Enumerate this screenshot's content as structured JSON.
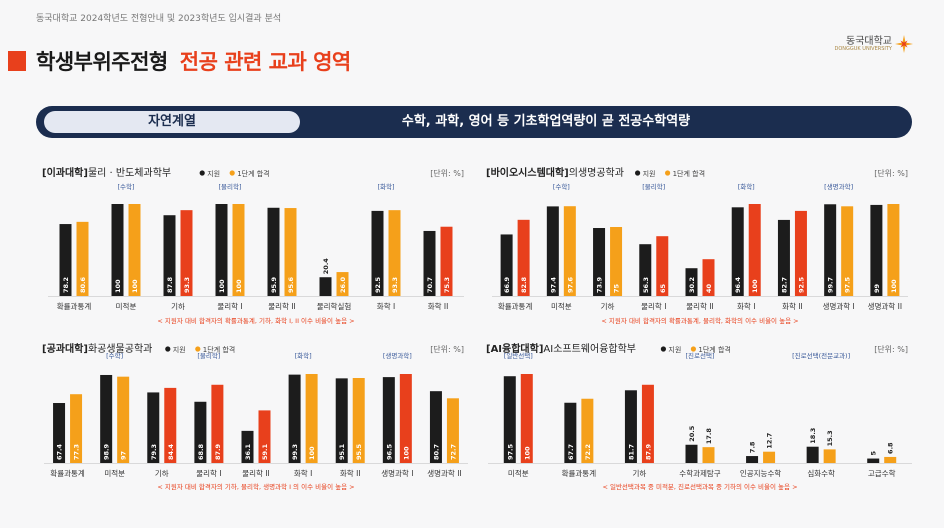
{
  "header": {
    "top_caption": "동국대학교 2024학년도 전형안내 및 2023학년도 입시결과 분석",
    "title": "학생부위주전형",
    "subtitle": "전공 관련 교과 영역",
    "logo_text": "동국대학교",
    "logo_sub": "DONGGUK UNIVERSITY"
  },
  "banner": {
    "category": "자연계열",
    "message": "수학, 과학, 영어 등 기초학업역량이 곧 전공수학역량"
  },
  "colors": {
    "black": "#1c1c1c",
    "orange": "#f5a01a",
    "red": "#e8401c",
    "navy": "#1b2d4f"
  },
  "chart_data": [
    {
      "type": "bar",
      "title_bracket": "[이과대학]",
      "title_rest": "물리 · 반도체과학부",
      "unit": "[단위: %]",
      "legend": [
        "지원",
        "1단계 합격"
      ],
      "categories": [
        "확률과통계",
        "미적분",
        "기하",
        "물리학 I",
        "물리학 II",
        "물리학실험",
        "화학 I",
        "화학 II"
      ],
      "tags": [
        "",
        "[수학]",
        "",
        "[물리학]",
        "",
        "",
        "[화학]",
        ""
      ],
      "series": [
        {
          "name": "지원",
          "values": [
            78.2,
            100,
            87.8,
            100,
            95.9,
            20.4,
            92.5,
            70.7
          ],
          "labels": [
            "78.2",
            "100",
            "87.8",
            "100",
            "95.9",
            "20.4",
            "92.5",
            "70.7"
          ]
        },
        {
          "name": "1단계 합격",
          "values": [
            80.6,
            100,
            93.3,
            100,
            95.6,
            26.0,
            93.3,
            75.3
          ],
          "labels": [
            "80.6",
            "100",
            "93.3",
            "100",
            "95.6",
            "26.0",
            "93.3",
            "75.3"
          ],
          "highlight": [
            false,
            false,
            true,
            false,
            false,
            false,
            false,
            true
          ]
        }
      ],
      "note": "< 지원자 대비 합격자의 확률과통계, 기하, 화학 I, II 이수 비율이 높음 >",
      "ylim": [
        0,
        100
      ]
    },
    {
      "type": "bar",
      "title_bracket": "[바이오시스템대학]",
      "title_rest": "의생명공학과",
      "unit": "[단위: %]",
      "legend": [
        "지원",
        "1단계 합격"
      ],
      "categories": [
        "확률과통계",
        "미적분",
        "기하",
        "물리학 I",
        "물리학 II",
        "화학 I",
        "화학 II",
        "생명과학 I",
        "생명과학 II"
      ],
      "tags": [
        "",
        "[수학]",
        "",
        "[물리학]",
        "",
        "[화학]",
        "",
        "[생명과학]",
        ""
      ],
      "series": [
        {
          "name": "지원",
          "values": [
            66.9,
            97.4,
            73.9,
            56.3,
            30.2,
            96.4,
            82.7,
            99.7,
            99
          ],
          "labels": [
            "66.9",
            "97.4",
            "73.9",
            "56.3",
            "30.2",
            "96.4",
            "82.7",
            "99.7",
            "99"
          ]
        },
        {
          "name": "1단계 합격",
          "values": [
            82.8,
            97.6,
            75,
            65,
            40,
            100,
            92.5,
            97.5,
            100
          ],
          "labels": [
            "82.8",
            "97.6",
            "75",
            "65",
            "40",
            "100",
            "92.5",
            "97.5",
            "100"
          ],
          "highlight": [
            true,
            false,
            false,
            true,
            true,
            true,
            true,
            false,
            false
          ]
        }
      ],
      "note": "< 지원자 대비 합격자의 확률과통계, 물리학, 화학의 이수 비율이 높음 >",
      "ylim": [
        0,
        100
      ]
    },
    {
      "type": "bar",
      "title_bracket": "[공과대학]",
      "title_rest": "화공생물공학과",
      "unit": "[단위: %]",
      "legend": [
        "지원",
        "1단계 합격"
      ],
      "categories": [
        "확률과통계",
        "미적분",
        "기하",
        "물리학 I",
        "물리학 II",
        "화학 I",
        "화학 II",
        "생명과학 I",
        "생명과학 II"
      ],
      "tags": [
        "",
        "[수학]",
        "",
        "[물리학]",
        "",
        "[화학]",
        "",
        "[생명과학]",
        ""
      ],
      "series": [
        {
          "name": "지원",
          "values": [
            67.4,
            98.9,
            79.3,
            68.8,
            36.1,
            99.3,
            95.1,
            96.5,
            80.7
          ],
          "labels": [
            "67.4",
            "98.9",
            "79.3",
            "68.8",
            "36.1",
            "99.3",
            "95.1",
            "96.5",
            "80.7"
          ]
        },
        {
          "name": "1단계 합격",
          "values": [
            77.3,
            97,
            84.4,
            87.9,
            59.1,
            100,
            95.5,
            100,
            72.7
          ],
          "labels": [
            "77.3",
            "97",
            "84.4",
            "87.9",
            "59.1",
            "100",
            "95.5",
            "100",
            "72.7"
          ],
          "highlight": [
            false,
            false,
            true,
            true,
            true,
            false,
            false,
            true,
            false
          ]
        }
      ],
      "note": "< 지원자 대비 합격자의 기하, 물리학, 생명과학 I 의 이수 비율이 높음 >",
      "ylim": [
        0,
        100
      ]
    },
    {
      "type": "bar",
      "title_bracket": "[AI융합대학]",
      "title_rest": "AI소프트웨어융합학부",
      "unit": "[단위: %]",
      "legend": [
        "지원",
        "1단계 합격"
      ],
      "categories": [
        "미적분",
        "확률과통계",
        "기하",
        "수학과제탐구",
        "인공지능수학",
        "심화수학",
        "고급수학"
      ],
      "tags": [
        "[일반선택]",
        "",
        "",
        "[진로선택]",
        "",
        "[진로선택(전문교과)]",
        ""
      ],
      "series": [
        {
          "name": "지원",
          "values": [
            97.5,
            67.7,
            81.7,
            20.5,
            7.8,
            18.3,
            5
          ],
          "labels": [
            "97.5",
            "67.7",
            "81.7",
            "20.5",
            "7.8",
            "18.3",
            "5"
          ]
        },
        {
          "name": "1단계 합격",
          "values": [
            100,
            72.2,
            87.9,
            17.8,
            12.7,
            15.3,
            6.8
          ],
          "labels": [
            "100",
            "72.2",
            "87.9",
            "17.8",
            "12.7",
            "15.3",
            "6.8"
          ],
          "highlight": [
            true,
            false,
            true,
            false,
            false,
            false,
            false
          ]
        }
      ],
      "note": "< 일반선택과목 중 미적분, 진로선택과목 중 기하의 이수 비율이 높음 >",
      "ylim": [
        0,
        100
      ]
    }
  ]
}
